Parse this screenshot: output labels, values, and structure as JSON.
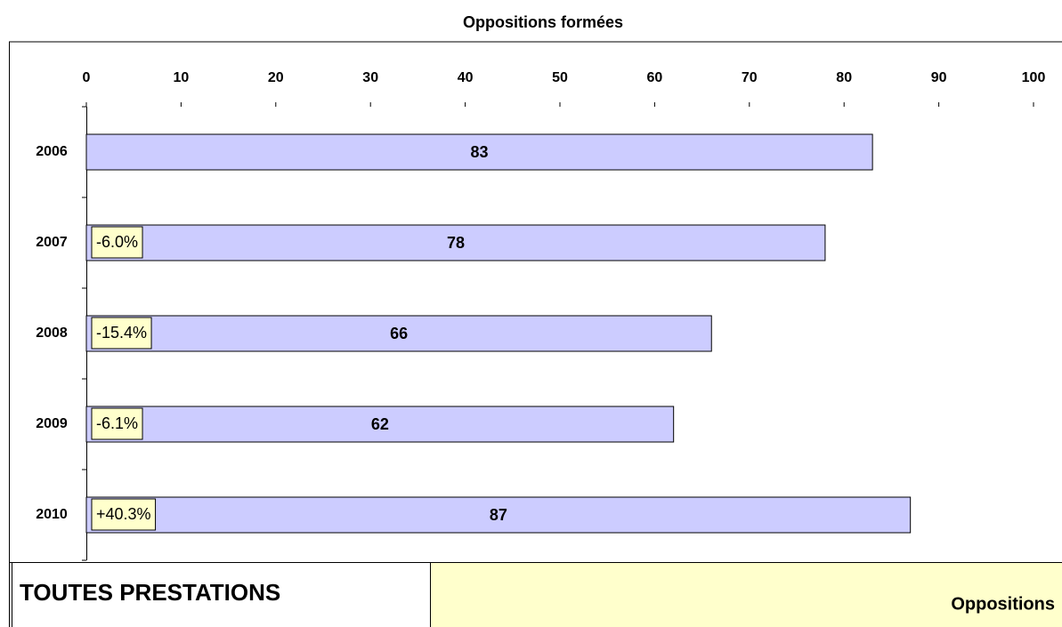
{
  "chart_data": {
    "type": "bar",
    "orientation": "horizontal",
    "title": "Oppositions formées",
    "categories": [
      "2006",
      "2007",
      "2008",
      "2009",
      "2010"
    ],
    "values": [
      83,
      78,
      66,
      62,
      87
    ],
    "color": "#ccccff",
    "changes": {
      "values": [
        null,
        -6.0,
        -15.4,
        -6.1,
        40.3
      ],
      "value_labels": [
        null,
        "-6.0%",
        "-15.4%",
        "-6.1%",
        "+40.3%"
      ],
      "color": "#ffffcc"
    },
    "xlim": [
      0,
      100
    ],
    "xticks": [
      0,
      10,
      20,
      30,
      40,
      50,
      60,
      70,
      80,
      90,
      100
    ],
    "grid": false
  },
  "footer": {
    "left": "TOUTES PRESTATIONS",
    "right": "Oppositions"
  }
}
